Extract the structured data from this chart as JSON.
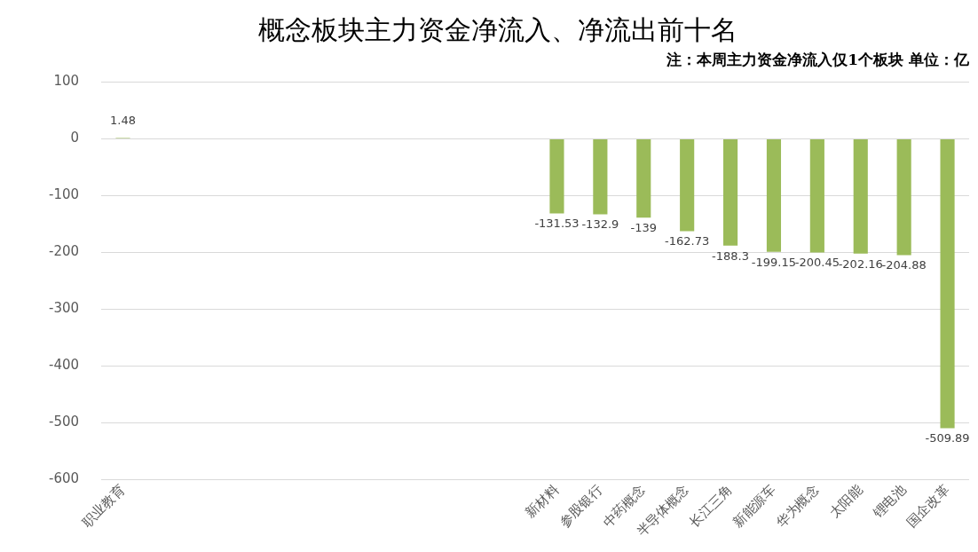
{
  "chart_data": {
    "type": "bar",
    "title": "概念板块主力资金净流入、净流出前十名",
    "subtitle": "注：本周主力资金净流入仅1个板块 单位：亿",
    "categories": [
      "职业教育",
      null,
      null,
      null,
      null,
      null,
      null,
      null,
      null,
      null,
      "新材料",
      "参股银行",
      "中药概念",
      "半导体概念",
      "长江三角",
      "新能源车",
      "华为概念",
      "太阳能",
      "锂电池",
      "国企改革"
    ],
    "values": [
      1.48,
      null,
      null,
      null,
      null,
      null,
      null,
      null,
      null,
      null,
      -131.53,
      -132.9,
      -139,
      -162.73,
      -188.3,
      -199.15,
      -200.45,
      -202.16,
      -204.88,
      -509.89
    ],
    "color": "#9bbb59",
    "ylim": [
      -600,
      100
    ],
    "yticks": [
      -600,
      -500,
      -400,
      -300,
      -200,
      -100,
      0,
      100
    ],
    "grid": "y",
    "legend": false,
    "data_labels": true
  }
}
